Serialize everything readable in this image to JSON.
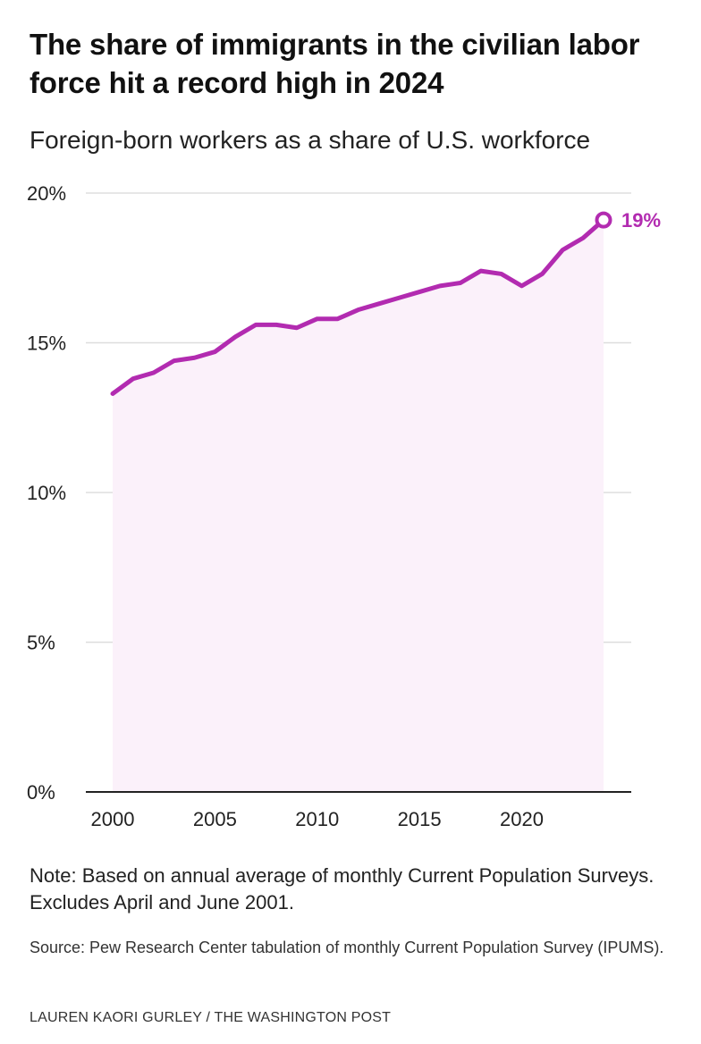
{
  "header": {
    "title": "The share of immigrants in the civilian labor force hit a record high in 2024",
    "subtitle": "Foreign-born workers as a share of U.S. workforce"
  },
  "footer": {
    "note": "Note: Based on annual average of monthly Current Population Surveys. Excludes April and June 2001.",
    "source": "Source: Pew Research Center tabulation of monthly Current Population Survey (IPUMS).",
    "credit": "LAUREN KAORI GURLEY / THE WASHINGTON POST"
  },
  "colors": {
    "line": "#b22bb0",
    "area": "#fbf1fa",
    "grid": "#dddddd",
    "axis": "#222222"
  },
  "chart_data": {
    "type": "area",
    "title": "The share of immigrants in the civilian labor force hit a record high in 2024",
    "subtitle": "Foreign-born workers as a share of U.S. workforce",
    "xlabel": "",
    "ylabel": "",
    "x": [
      2000,
      2001,
      2002,
      2003,
      2004,
      2005,
      2006,
      2007,
      2008,
      2009,
      2010,
      2011,
      2012,
      2013,
      2014,
      2015,
      2016,
      2017,
      2018,
      2019,
      2020,
      2021,
      2022,
      2023,
      2024
    ],
    "series": [
      {
        "values": [
          13.3,
          13.8,
          14.0,
          14.4,
          14.5,
          14.7,
          15.2,
          15.6,
          15.6,
          15.5,
          15.8,
          15.8,
          16.1,
          16.3,
          16.5,
          16.7,
          16.9,
          17.0,
          17.4,
          17.3,
          16.9,
          17.3,
          18.1,
          18.5,
          19.1
        ]
      }
    ],
    "xlim": [
      2000,
      2024
    ],
    "ylim": [
      0,
      20
    ],
    "x_ticks": [
      2000,
      2005,
      2010,
      2015,
      2020
    ],
    "x_tick_labels": [
      "2000",
      "2005",
      "2010",
      "2015",
      "2020"
    ],
    "y_ticks": [
      0,
      5,
      10,
      15,
      20
    ],
    "y_tick_labels": [
      "0%",
      "5%",
      "10%",
      "15%",
      "20%"
    ],
    "grid": true,
    "legend": "none",
    "end_label": "19%"
  }
}
